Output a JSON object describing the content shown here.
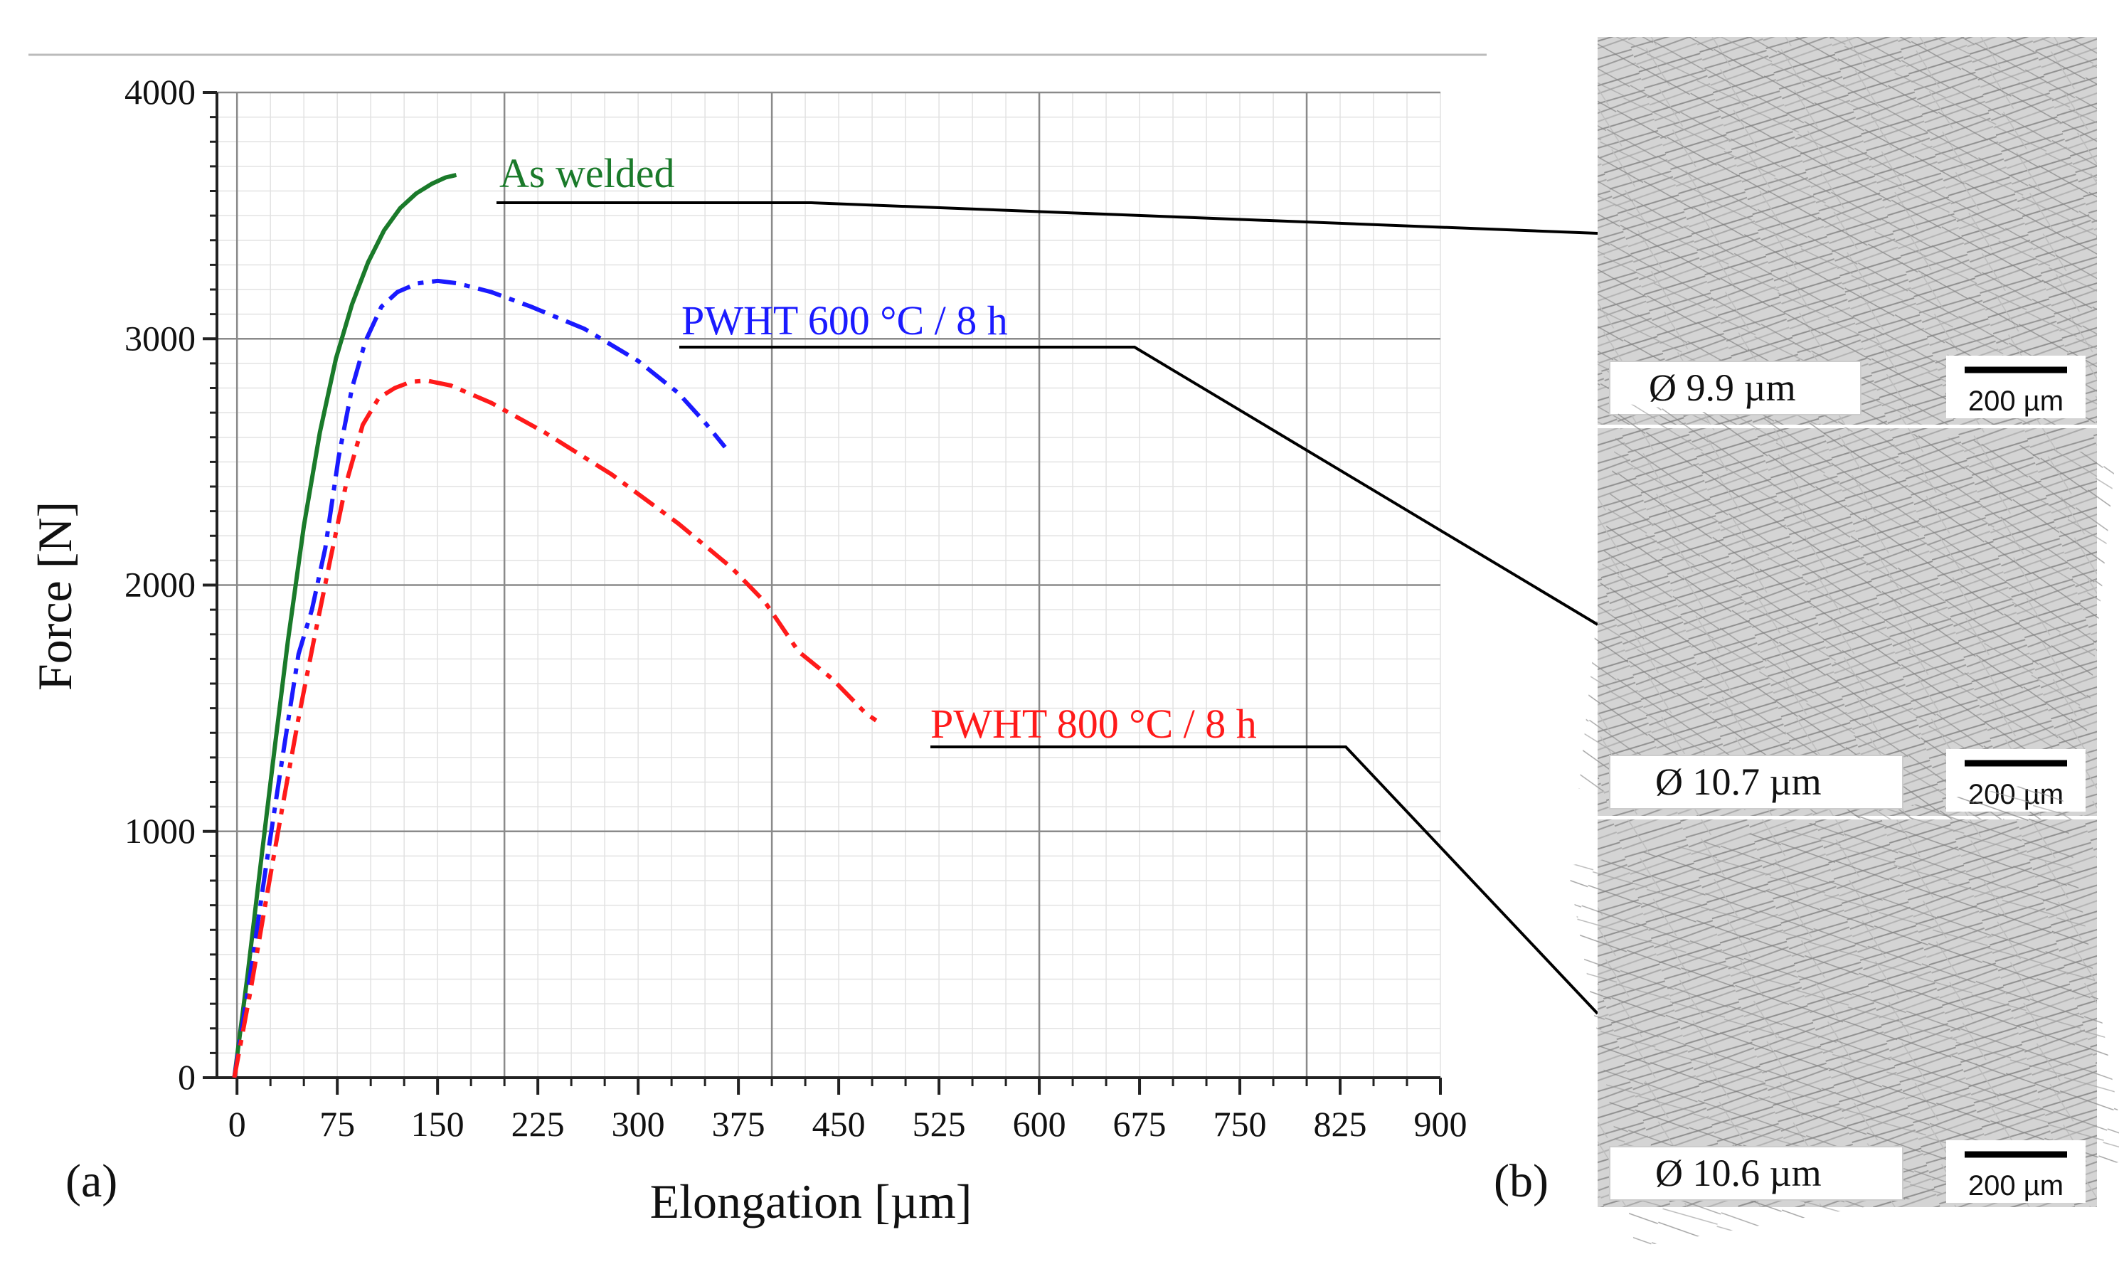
{
  "chart_data": {
    "type": "line",
    "xlabel": "Elongation [µm]",
    "ylabel": "Force [N]",
    "xlim": [
      -15,
      900
    ],
    "ylim": [
      0,
      4000
    ],
    "xticks": [
      0,
      75,
      150,
      225,
      300,
      375,
      450,
      525,
      600,
      675,
      750,
      825,
      900
    ],
    "yticks": [
      0,
      1000,
      2000,
      3000,
      4000
    ],
    "major_grid_x": [
      0,
      200,
      400,
      600,
      800
    ],
    "major_grid_y": [
      1000,
      2000,
      3000,
      4000
    ],
    "minor_grid_step_x": 25,
    "minor_grid_step_y": 100,
    "grid": true,
    "series": [
      {
        "name": "As welded",
        "color": "#1a7a2a",
        "style": "solid",
        "x": [
          -2,
          8,
          18,
          28,
          38,
          50,
          62,
          74,
          86,
          98,
          110,
          122,
          134,
          146,
          156,
          164
        ],
        "y": [
          0,
          420,
          880,
          1330,
          1770,
          2240,
          2620,
          2920,
          3140,
          3310,
          3440,
          3530,
          3590,
          3630,
          3655,
          3665
        ]
      },
      {
        "name": "PWHT 600 °C / 8 h",
        "color": "#1a1aff",
        "style": "dashdot",
        "x": [
          -2,
          10,
          22,
          34,
          46,
          56,
          66,
          76,
          86,
          96,
          108,
          120,
          135,
          150,
          165,
          190,
          220,
          260,
          300,
          330,
          350,
          365
        ],
        "y": [
          0,
          420,
          870,
          1300,
          1720,
          1900,
          2150,
          2520,
          2800,
          2990,
          3130,
          3190,
          3225,
          3235,
          3225,
          3190,
          3130,
          3040,
          2910,
          2780,
          2660,
          2560
        ]
      },
      {
        "name": "PWHT 800 °C / 8 h",
        "color": "#ff1a1a",
        "style": "dashdot",
        "x": [
          -2,
          10,
          22,
          34,
          46,
          58,
          70,
          82,
          94,
          106,
          118,
          130,
          142,
          160,
          190,
          230,
          280,
          330,
          370,
          395,
          420,
          445,
          470,
          478
        ],
        "y": [
          0,
          350,
          730,
          1100,
          1460,
          1790,
          2110,
          2420,
          2650,
          2760,
          2800,
          2825,
          2830,
          2810,
          2740,
          2620,
          2450,
          2250,
          2070,
          1930,
          1730,
          1620,
          1480,
          1450
        ]
      }
    ],
    "panels": {
      "a": "(a)",
      "b": "(b)"
    },
    "micrographs": [
      {
        "series": "As welded",
        "diameter": "Ø 9.9 µm",
        "scale_bar": "200 µm"
      },
      {
        "series": "PWHT 600 °C / 8 h",
        "diameter": "Ø 10.7 µm",
        "scale_bar": "200 µm"
      },
      {
        "series": "PWHT 800 °C / 8 h",
        "diameter": "Ø 10.6 µm",
        "scale_bar": "200 µm"
      }
    ]
  }
}
